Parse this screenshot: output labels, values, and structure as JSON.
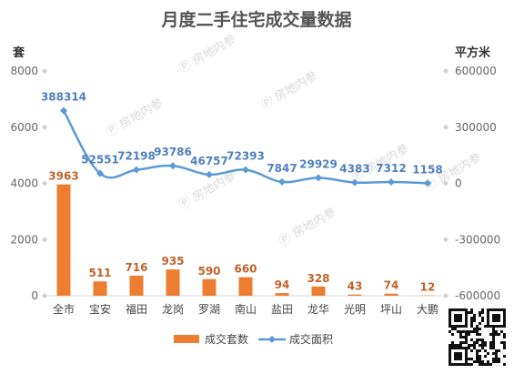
{
  "chart_data": {
    "type": "bar",
    "title": "月度二手住宅成交量数据",
    "categories": [
      "全市",
      "宝安",
      "福田",
      "龙岗",
      "罗湖",
      "南山",
      "盐田",
      "龙华",
      "光明",
      "坪山",
      "大鹏"
    ],
    "series": [
      {
        "name": "成交套数",
        "type": "bar",
        "axis": "left",
        "color": "#ed7d31",
        "values": [
          3963,
          511,
          716,
          935,
          590,
          660,
          94,
          328,
          43,
          74,
          12
        ]
      },
      {
        "name": "成交面积",
        "type": "line",
        "axis": "right",
        "color": "#5b9bd5",
        "values": [
          388314,
          52551,
          72198,
          93786,
          46757,
          72393,
          7847,
          29929,
          4383,
          7312,
          1158
        ]
      }
    ],
    "y_left": {
      "unit": "套",
      "range": [
        0,
        8000
      ],
      "ticks": [
        "8000",
        "6000",
        "4000",
        "2000",
        "0"
      ]
    },
    "y_right": {
      "unit": "平方米",
      "range": [
        -600000,
        600000
      ],
      "ticks": [
        "600000",
        "300000",
        "0",
        "-300000",
        "-600000"
      ]
    },
    "legend_position": "bottom",
    "grid": false,
    "watermark_text": "房地内参"
  }
}
